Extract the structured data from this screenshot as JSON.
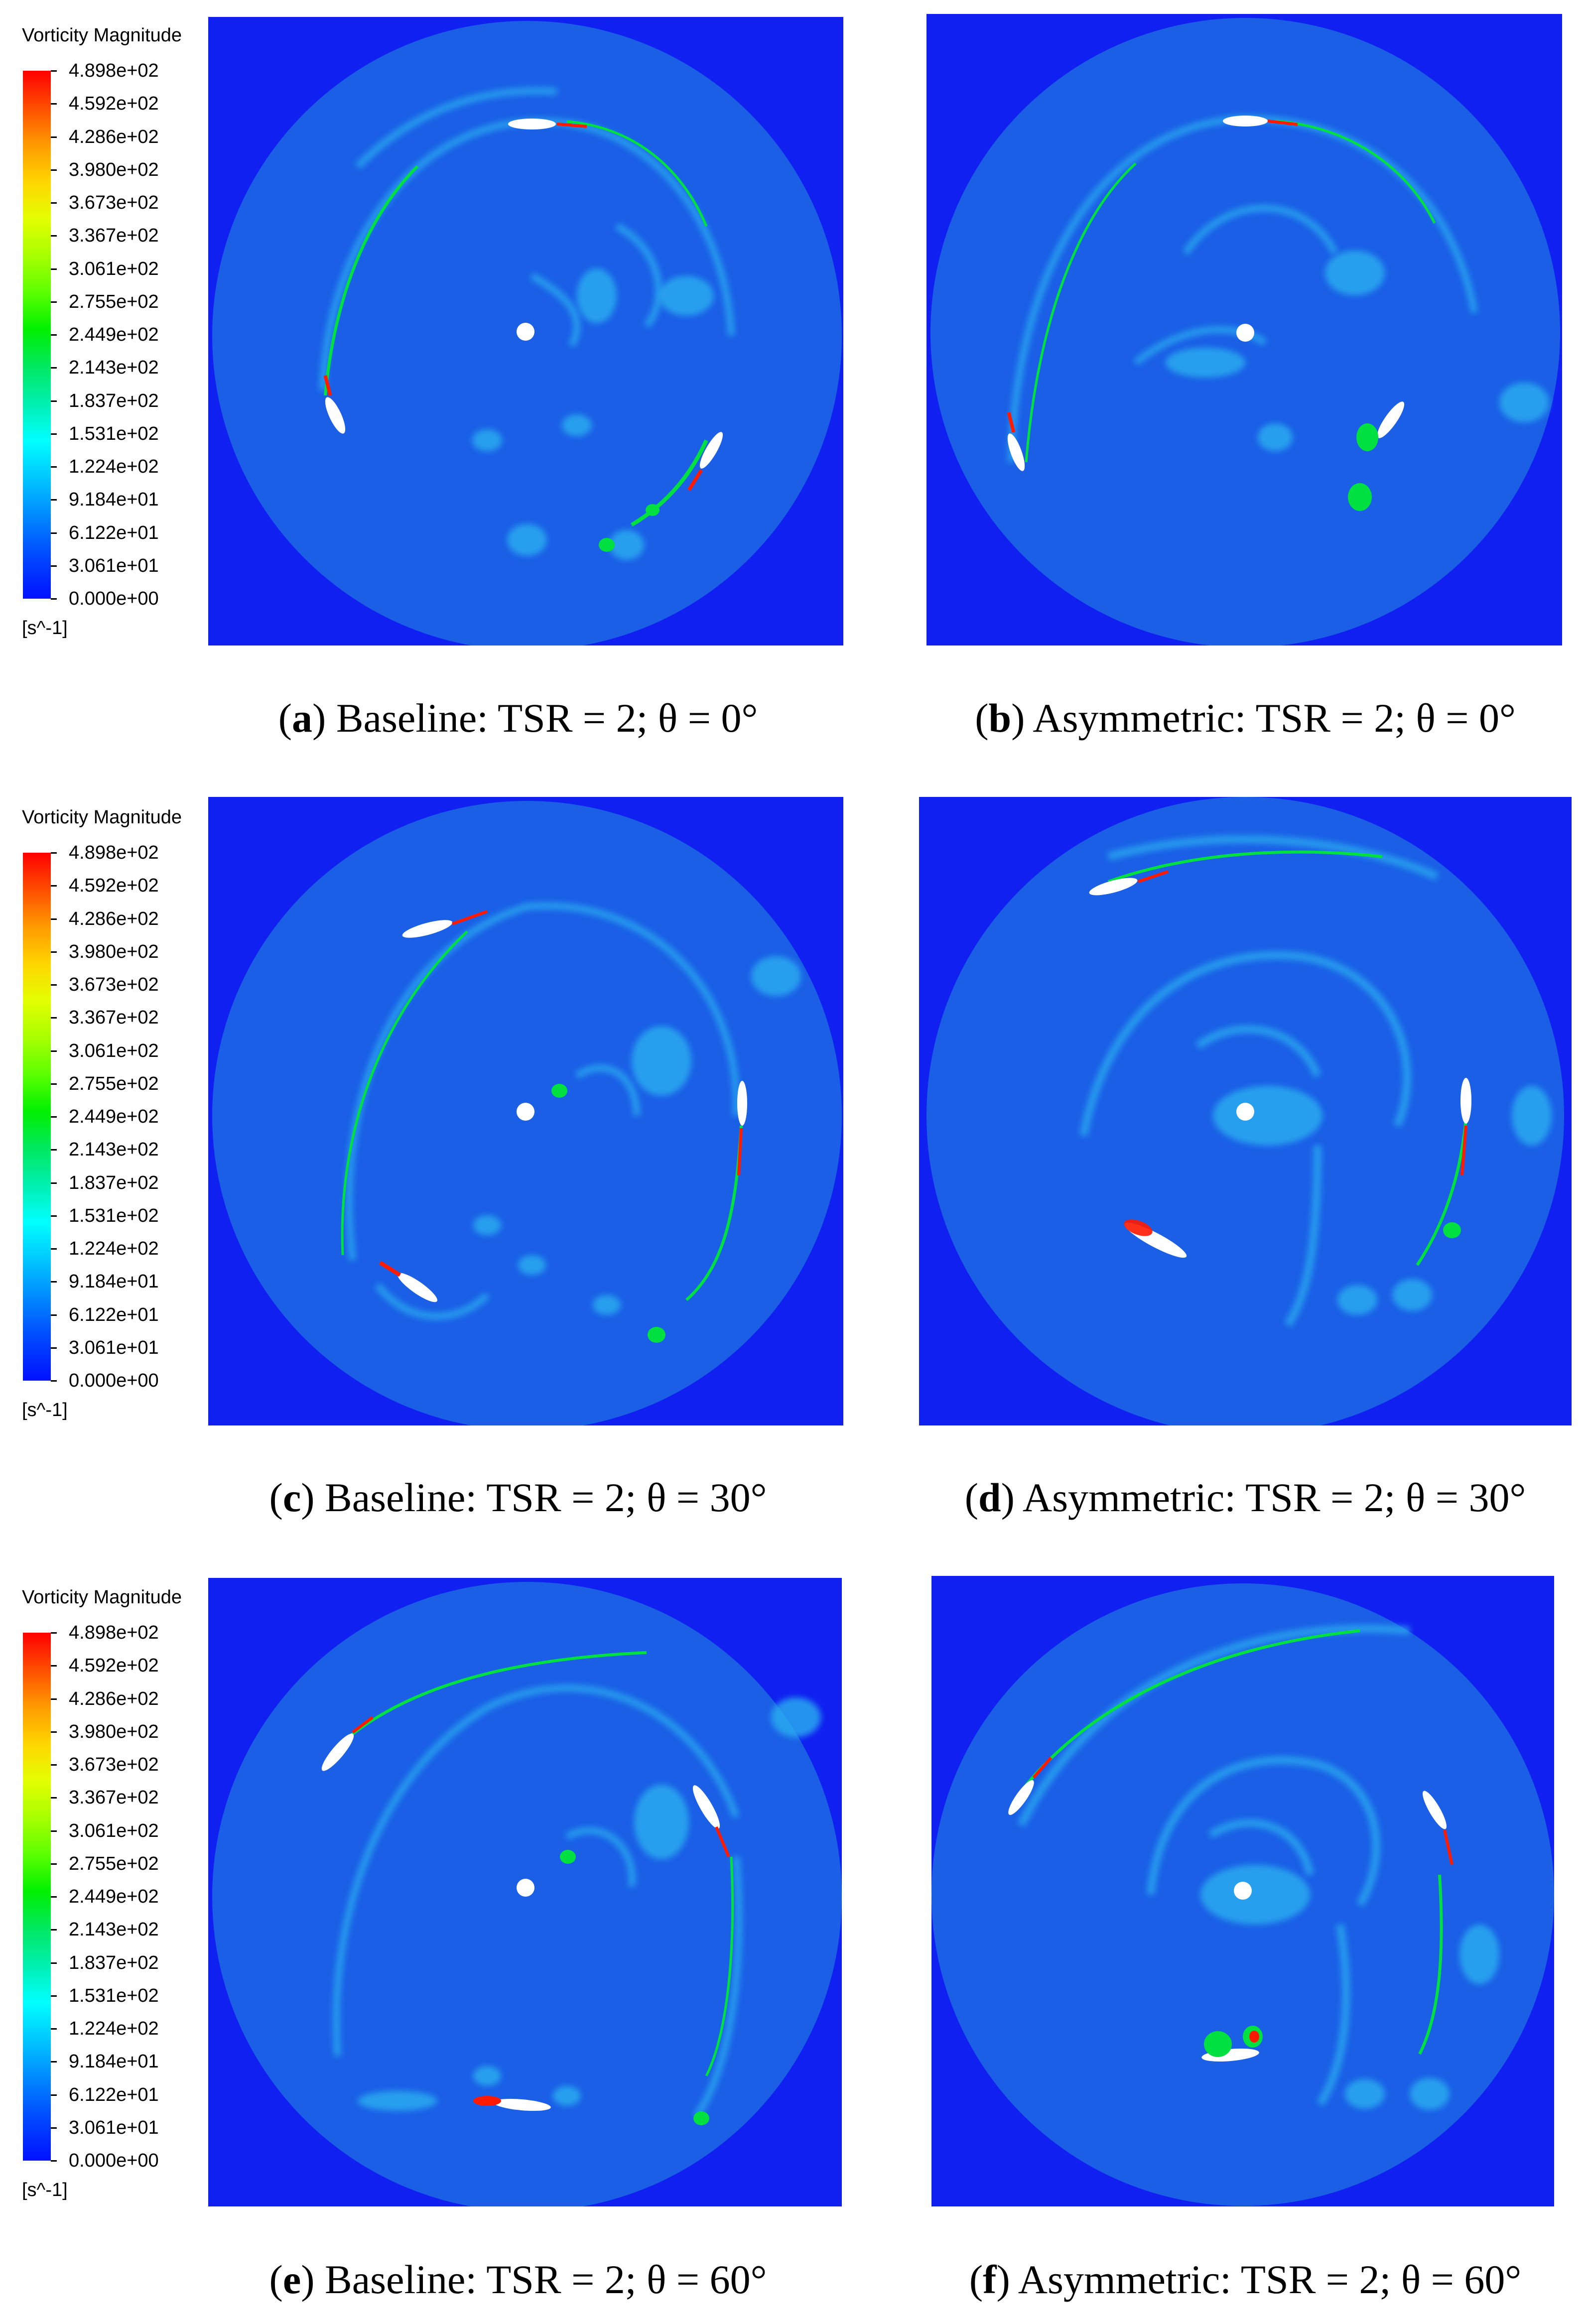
{
  "legend": {
    "title": "Vorticity Magnitude",
    "unit": "[s^-1]",
    "tick_labels": [
      "4.898e+02",
      "4.592e+02",
      "4.286e+02",
      "3.980e+02",
      "3.673e+02",
      "3.367e+02",
      "3.061e+02",
      "2.755e+02",
      "2.449e+02",
      "2.143e+02",
      "1.837e+02",
      "1.531e+02",
      "1.224e+02",
      "9.184e+01",
      "6.122e+01",
      "3.061e+01",
      "0.000e+00"
    ]
  },
  "colors": {
    "background": "#1020f0",
    "domain": "#1a5fe6",
    "wake": "#2ab0f0",
    "high": "#ff1a00",
    "mid": "#00e040"
  },
  "panels": [
    {
      "id": "a",
      "letter": "a",
      "text": ") Baseline: TSR = 2; θ = 0°"
    },
    {
      "id": "b",
      "letter": "b",
      "text": ") Asymmetric: TSR = 2; θ = 0°"
    },
    {
      "id": "c",
      "letter": "c",
      "text": ") Baseline: TSR = 2; θ = 30°"
    },
    {
      "id": "d",
      "letter": "d",
      "text": ") Asymmetric: TSR = 2; θ = 30°"
    },
    {
      "id": "e",
      "letter": "e",
      "text": ") Baseline: TSR = 2; θ = 60°"
    },
    {
      "id": "f",
      "letter": "f",
      "text": ") Asymmetric: TSR = 2; θ = 60°"
    }
  ]
}
